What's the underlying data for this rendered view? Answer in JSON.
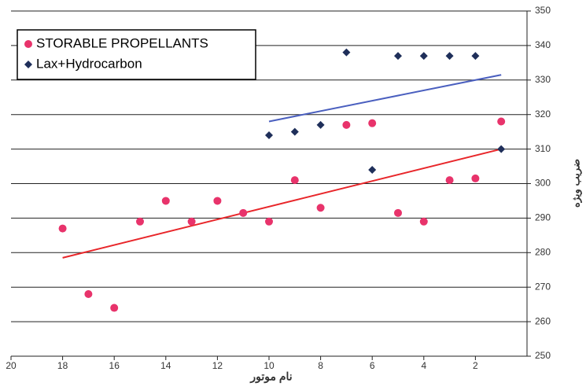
{
  "chart_data": {
    "type": "scatter",
    "x_label": "نام موتور",
    "y_label": "ضریب ویژه",
    "xlim": [
      20,
      0
    ],
    "xticks": [
      20,
      18,
      16,
      14,
      12,
      10,
      8,
      6,
      4,
      2
    ],
    "ylim": [
      250,
      350
    ],
    "yticks": [
      250,
      260,
      270,
      280,
      290,
      300,
      310,
      320,
      330,
      340,
      350
    ],
    "grid": true,
    "legend": "upper left",
    "series": [
      {
        "name": "STORABLE PROPELLANTS",
        "color": "#e8336b",
        "marker": "circle",
        "x": [
          18,
          17,
          16,
          15,
          14,
          13,
          12,
          11,
          10,
          9,
          8,
          7,
          6,
          5,
          4,
          3,
          2,
          1
        ],
        "values": [
          287,
          268,
          264,
          289,
          295,
          289,
          295,
          291.5,
          289,
          301,
          293,
          317,
          317.5,
          291.5,
          289,
          301,
          301.5,
          318
        ]
      },
      {
        "name": "Lax+Hydrocarbon",
        "color": "#1f2f5a",
        "marker": "diamond",
        "x": [
          10,
          9,
          8,
          7,
          6,
          5,
          4,
          3,
          2,
          1
        ],
        "values": [
          314,
          315,
          317,
          338,
          304,
          337,
          337,
          337,
          337,
          310
        ]
      }
    ],
    "trend_lines": [
      {
        "color": "#e8262a",
        "x": [
          18,
          1
        ],
        "values": [
          278.5,
          310
        ]
      },
      {
        "color": "#4a5fbf",
        "x": [
          10,
          1
        ],
        "values": [
          318,
          331.5
        ]
      }
    ]
  }
}
